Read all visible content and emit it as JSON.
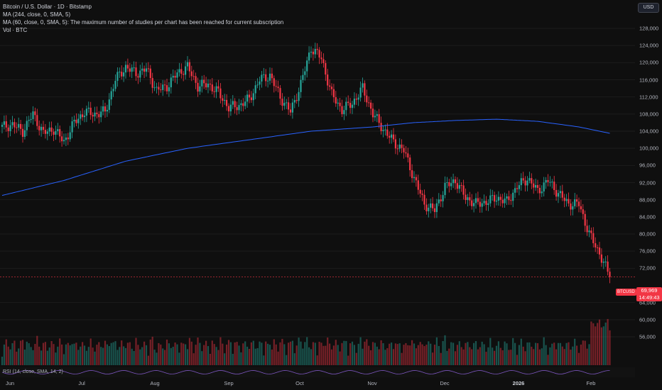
{
  "legend": {
    "title": "Bitcoin / U.S. Dollar · 1D · Bitstamp",
    "ma1": "MA (244, close, 0, SMA, 5)",
    "ma2": "MA (60, close, 0, SMA, 5): The maximum number of studies per chart has been reached for current subscription",
    "vol": "Vol · BTC"
  },
  "currency_button": "USD",
  "rsi_label": "RSI (14, close, SMA, 14, 2)",
  "price_tag": {
    "symbol": "BTCUSD",
    "price": "69,969",
    "countdown": "14:49:43"
  },
  "colors": {
    "up": "#26a69a",
    "down": "#f23645",
    "ma": "#2962ff",
    "background": "#0f0f0f"
  },
  "chart_data": {
    "type": "candlestick",
    "ylim": [
      52000,
      130000
    ],
    "y_ticks": [
      "128,000",
      "124,000",
      "120,000",
      "116,000",
      "112,000",
      "108,000",
      "104,000",
      "100,000",
      "96,000",
      "92,000",
      "88,000",
      "84,000",
      "80,000",
      "76,000",
      "72,000",
      "64,000",
      "60,000",
      "56,000"
    ],
    "x_ticks": [
      {
        "label": "Jun",
        "bold": false
      },
      {
        "label": "Jul",
        "bold": false
      },
      {
        "label": "Aug",
        "bold": false
      },
      {
        "label": "Sep",
        "bold": false
      },
      {
        "label": "Oct",
        "bold": false
      },
      {
        "label": "Nov",
        "bold": false
      },
      {
        "label": "Dec",
        "bold": false
      },
      {
        "label": "2026",
        "bold": true
      },
      {
        "label": "Feb",
        "bold": false
      }
    ],
    "close_anchors": [
      [
        0,
        105000
      ],
      [
        5,
        105500
      ],
      [
        10,
        104000
      ],
      [
        15,
        108000
      ],
      [
        20,
        103500
      ],
      [
        25,
        104500
      ],
      [
        30,
        101500
      ],
      [
        35,
        106000
      ],
      [
        40,
        108500
      ],
      [
        45,
        108000
      ],
      [
        50,
        108500
      ],
      [
        55,
        116000
      ],
      [
        60,
        119000
      ],
      [
        65,
        117500
      ],
      [
        70,
        118500
      ],
      [
        75,
        113500
      ],
      [
        80,
        114500
      ],
      [
        85,
        117500
      ],
      [
        90,
        119000
      ],
      [
        95,
        114500
      ],
      [
        100,
        115000
      ],
      [
        105,
        113000
      ],
      [
        110,
        109500
      ],
      [
        115,
        110000
      ],
      [
        120,
        111500
      ],
      [
        125,
        116000
      ],
      [
        130,
        117000
      ],
      [
        135,
        112000
      ],
      [
        140,
        108500
      ],
      [
        145,
        115000
      ],
      [
        150,
        123500
      ],
      [
        155,
        121000
      ],
      [
        160,
        112500
      ],
      [
        165,
        109000
      ],
      [
        170,
        110500
      ],
      [
        175,
        114000
      ],
      [
        180,
        108000
      ],
      [
        185,
        104500
      ],
      [
        190,
        101500
      ],
      [
        195,
        99500
      ],
      [
        200,
        93000
      ],
      [
        205,
        87000
      ],
      [
        210,
        85500
      ],
      [
        215,
        91000
      ],
      [
        220,
        92500
      ],
      [
        225,
        88500
      ],
      [
        230,
        87000
      ],
      [
        235,
        87500
      ],
      [
        240,
        88500
      ],
      [
        245,
        87500
      ],
      [
        250,
        91000
      ],
      [
        255,
        93000
      ],
      [
        260,
        90000
      ],
      [
        265,
        92500
      ],
      [
        270,
        89500
      ],
      [
        275,
        87000
      ],
      [
        280,
        87000
      ],
      [
        285,
        80000
      ],
      [
        290,
        75500
      ],
      [
        295,
        69969
      ]
    ],
    "ma244": [
      [
        0,
        89000
      ],
      [
        30,
        92500
      ],
      [
        60,
        97000
      ],
      [
        90,
        100000
      ],
      [
        120,
        102000
      ],
      [
        150,
        104000
      ],
      [
        180,
        105000
      ],
      [
        200,
        106000
      ],
      [
        220,
        106500
      ],
      [
        240,
        106800
      ],
      [
        260,
        106300
      ],
      [
        280,
        105000
      ],
      [
        295,
        103500
      ]
    ],
    "last_price": 69969,
    "last_index": 295
  }
}
